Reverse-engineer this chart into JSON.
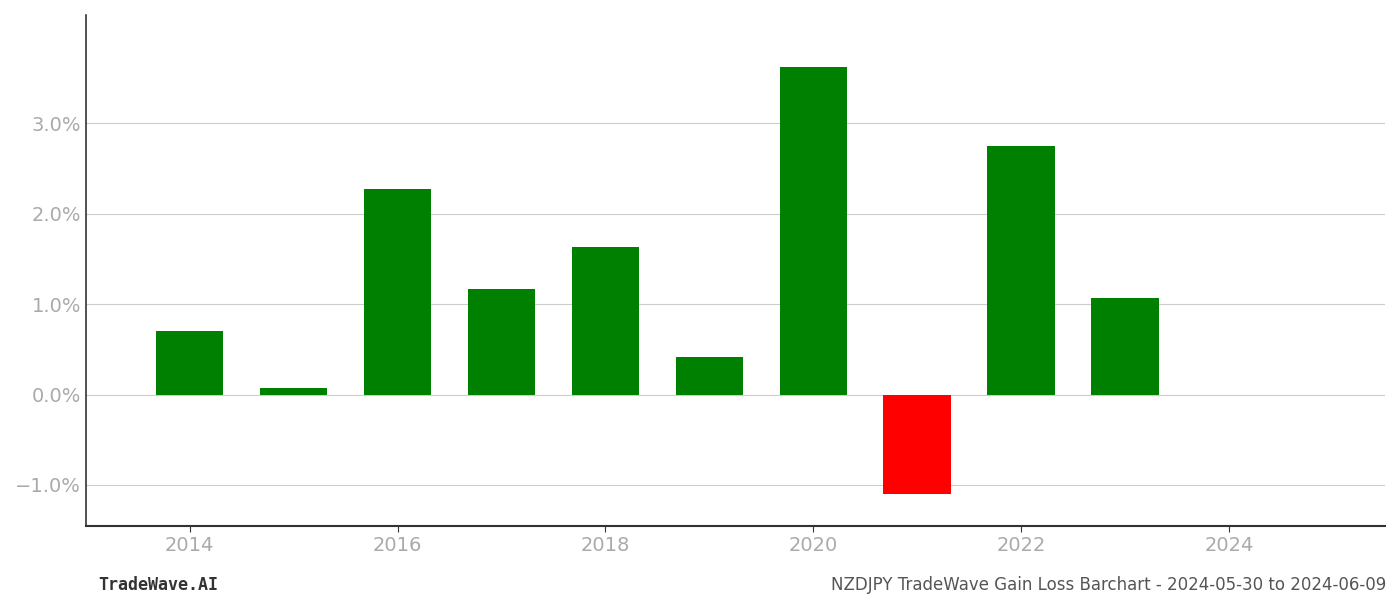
{
  "years": [
    2014,
    2015,
    2016,
    2017,
    2018,
    2019,
    2020,
    2021,
    2022,
    2023
  ],
  "values": [
    0.007,
    0.0007,
    0.0228,
    0.0117,
    0.0163,
    0.0042,
    0.0363,
    -0.011,
    0.0275,
    0.0107
  ],
  "colors": [
    "#008000",
    "#008000",
    "#008000",
    "#008000",
    "#008000",
    "#008000",
    "#008000",
    "#ff0000",
    "#008000",
    "#008000"
  ],
  "xlim": [
    2013.0,
    2025.5
  ],
  "ylim": [
    -0.0145,
    0.042
  ],
  "yticks": [
    -0.01,
    0.0,
    0.01,
    0.02,
    0.03
  ],
  "xtick_positions": [
    2014,
    2016,
    2018,
    2020,
    2022,
    2024
  ],
  "bar_width": 0.65,
  "grid_color": "#cccccc",
  "background_color": "#ffffff",
  "footer_left": "TradeWave.AI",
  "footer_right": "NZDJPY TradeWave Gain Loss Barchart - 2024-05-30 to 2024-06-09",
  "footer_fontsize": 12,
  "tick_fontsize": 14,
  "tick_color": "#aaaaaa",
  "spine_color": "#333333",
  "neg_sign": "−"
}
